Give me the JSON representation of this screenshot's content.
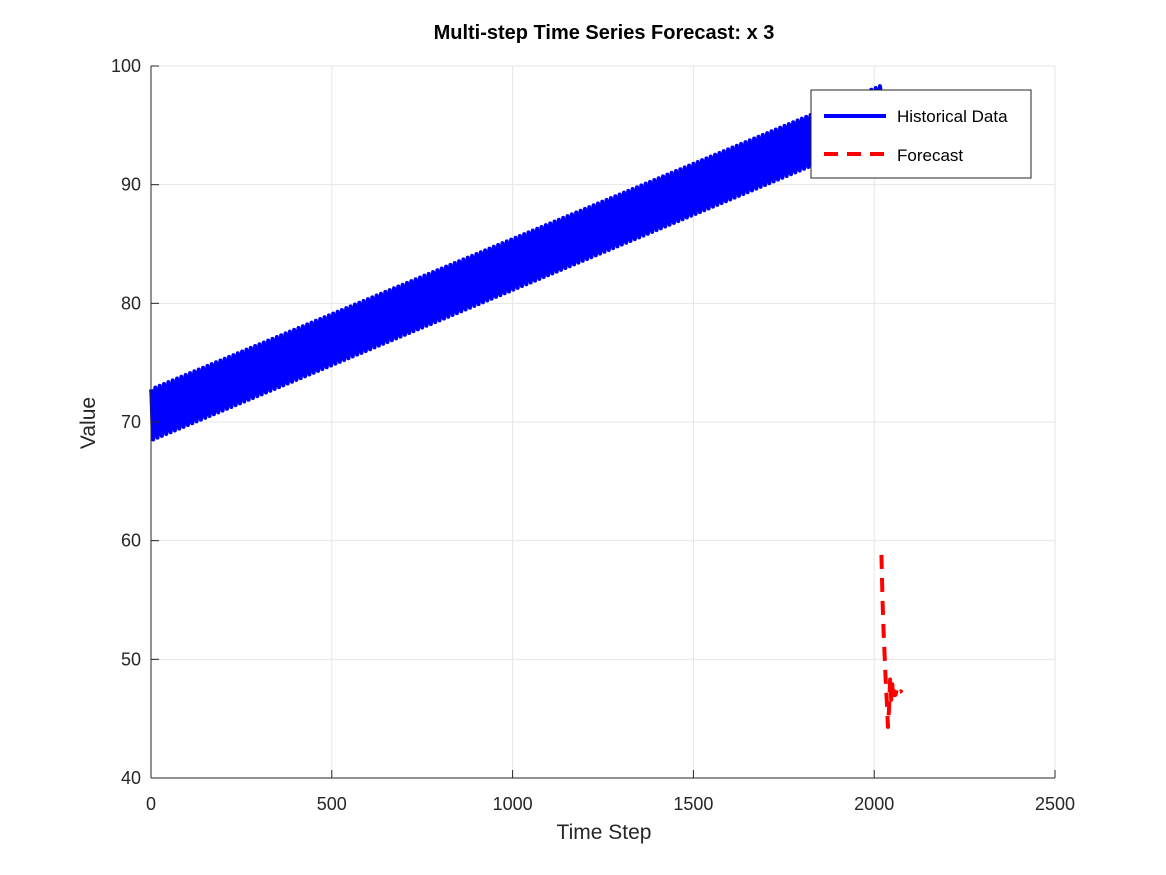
{
  "chart_data": {
    "type": "line",
    "title": "Multi-step Time Series Forecast: x  3",
    "xlabel": "Time Step",
    "ylabel": "Value",
    "xlim": [
      0,
      2500
    ],
    "ylim": [
      40,
      100
    ],
    "xticks": [
      "0",
      "500",
      "1000",
      "1500",
      "2000",
      "2500"
    ],
    "yticks": [
      "40",
      "50",
      "60",
      "70",
      "80",
      "90",
      "100"
    ],
    "grid": true,
    "legend_position": "top-right",
    "series": [
      {
        "name": "Historical Data",
        "color": "#0000ff",
        "style": "solid",
        "generator": {
          "x_start": 0,
          "x_end": 2020,
          "period": 12,
          "trend_start": 70.6,
          "trend_end": 96.2,
          "amplitude": 2.15
        }
      },
      {
        "name": "Forecast",
        "color": "#ff0000",
        "style": "dashed",
        "x": [
          2020,
          2023,
          2026,
          2029,
          2032,
          2035,
          2038,
          2041,
          2044,
          2047,
          2050,
          2053,
          2056,
          2059,
          2062,
          2065,
          2068,
          2071,
          2074,
          2077
        ],
        "y": [
          58.8,
          55.0,
          52.3,
          50.2,
          48.1,
          46.4,
          44.3,
          45.8,
          48.3,
          46.6,
          47.9,
          46.5,
          47.3,
          47.0,
          47.4,
          47.1,
          47.3,
          47.2,
          47.3,
          47.2
        ]
      }
    ]
  }
}
